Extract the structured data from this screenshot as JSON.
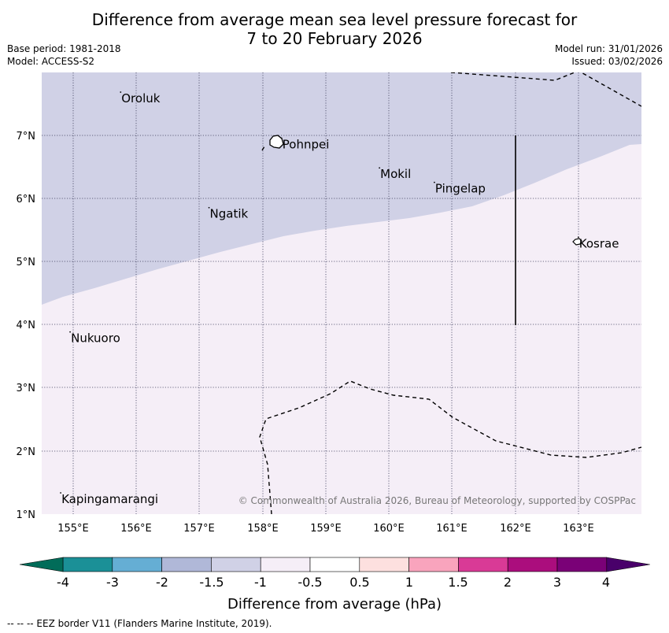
{
  "title": {
    "line1": "Difference from average mean sea level pressure forecast for",
    "line2": "7 to 20 February 2026"
  },
  "meta": {
    "base_period": "Base period: 1981-2018",
    "model": "Model: ACCESS-S2",
    "model_run": "Model run: 31/01/2026",
    "issued": "Issued: 03/02/2026"
  },
  "map": {
    "lon_range": [
      154.5,
      164.0
    ],
    "lat_range": [
      1.0,
      8.0
    ],
    "lon_ticks": [
      "155°E",
      "156°E",
      "157°E",
      "158°E",
      "159°E",
      "160°E",
      "161°E",
      "162°E",
      "163°E"
    ],
    "lat_ticks": [
      "1°N",
      "2°N",
      "3°N",
      "4°N",
      "5°N",
      "6°N",
      "7°N"
    ],
    "copyright": "© Commonwealth of Australia 2026, Bureau of Meteorology, supported by COSPPac",
    "anomaly_regions": [
      {
        "range": "-1.5 to -1",
        "color": "#d0d1e6",
        "location": "north"
      },
      {
        "range": "-1 to -0.5",
        "color": "#f5eef7",
        "location": "south"
      }
    ],
    "places": [
      {
        "name": "Oroluk",
        "lon": 155.75,
        "lat": 7.6
      },
      {
        "name": "Pohnpei",
        "lon": 158.3,
        "lat": 6.87
      },
      {
        "name": "Mokil",
        "lon": 159.85,
        "lat": 6.4
      },
      {
        "name": "Pingelap",
        "lon": 160.72,
        "lat": 6.17
      },
      {
        "name": "Ngatik",
        "lon": 157.15,
        "lat": 5.77
      },
      {
        "name": "Kosrae",
        "lon": 163.0,
        "lat": 5.3
      },
      {
        "name": "Nukuoro",
        "lon": 154.95,
        "lat": 3.8
      },
      {
        "name": "Kapingamarangi",
        "lon": 154.8,
        "lat": 1.25
      }
    ]
  },
  "colorbar": {
    "label": "Difference from average (hPa)",
    "tick_labels": [
      "-4",
      "-3",
      "-2",
      "-1.5",
      "-1",
      "-0.5",
      "0.5",
      "1",
      "1.5",
      "2",
      "3",
      "4"
    ],
    "colors": [
      "#1b9097",
      "#65aed4",
      "#b0b8d8",
      "#d0d1e6",
      "#f5eef7",
      "#ffffff",
      "#fde0df",
      "#f9a4bd",
      "#d93a96",
      "#ab0d7d",
      "#7a0177"
    ],
    "under_color": "#016c59",
    "over_color": "#49006a"
  },
  "footnote": "-- -- -- EEZ border V11 (Flanders Marine Institute, 2019)."
}
